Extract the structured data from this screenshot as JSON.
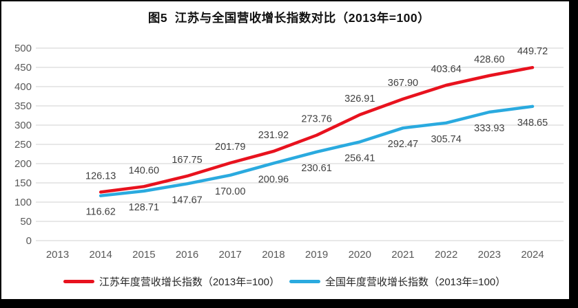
{
  "title": "图5  江苏与全国营收增长指数对比（2013年=100）",
  "colors": {
    "jiangsu": "#e8121e",
    "national": "#2aaadf",
    "grid": "#d9d9d9",
    "axis_text": "#595959",
    "data_label_text": "#404040",
    "frame": "#000000",
    "background": "#ffffff"
  },
  "chart_data": {
    "type": "line",
    "title": "图5  江苏与全国营收增长指数对比（2013年=100）",
    "categories": [
      2013,
      2014,
      2015,
      2016,
      2017,
      2018,
      2019,
      2020,
      2021,
      2022,
      2023,
      2024
    ],
    "series": [
      {
        "name": "江苏年度营收增长指数（2013年=100）",
        "color_key": "jiangsu",
        "start_category": 2014,
        "values": [
          126.13,
          140.6,
          167.75,
          201.79,
          231.92,
          273.76,
          326.91,
          367.9,
          403.64,
          428.6,
          449.72
        ],
        "label_position": "above"
      },
      {
        "name": "全国年度营收增长指数（2013年=100）",
        "color_key": "national",
        "start_category": 2014,
        "values": [
          116.62,
          128.71,
          147.67,
          170.0,
          200.96,
          230.61,
          256.41,
          292.47,
          305.74,
          333.93,
          348.65
        ],
        "label_position": "below"
      }
    ],
    "xlabel": "",
    "ylabel": "",
    "ylim": [
      0,
      500
    ],
    "ytick_step": 50,
    "grid": true,
    "legend_position": "bottom",
    "data_labels": true,
    "data_label_decimals": 2
  }
}
